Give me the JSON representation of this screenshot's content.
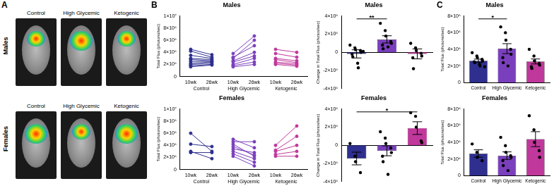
{
  "panel_labels": [
    "A",
    "B",
    "C"
  ],
  "image_panel": {
    "rows": [
      "Males",
      "Females"
    ],
    "columns": [
      "Control",
      "High Glycemic",
      "Ketogenic"
    ]
  },
  "chart_data": [
    {
      "type": "line",
      "title": "Males",
      "y_label": "Total Flux (photons/sec)",
      "categories": [
        "10wk",
        "26wk"
      ],
      "marker": "circle",
      "grid": false,
      "ylim": [
        0,
        10000000.0
      ],
      "yticks": [
        0,
        {
          "value": 2000000.0,
          "label": "2×10⁶"
        },
        {
          "value": 4000000.0,
          "label": "4×10⁶"
        },
        {
          "value": 6000000.0,
          "label": "6×10⁶"
        },
        {
          "value": 8000000.0,
          "label": "8×10⁶"
        },
        {
          "value": 10000000.0,
          "label": "1×10⁷"
        }
      ],
      "groups": [
        {
          "name": "Control",
          "color": "#2e2f8f",
          "subjects": [
            [
              4500000.0,
              3600000.0
            ],
            [
              4200000.0,
              3200000.0
            ],
            [
              3500000.0,
              3000000.0
            ],
            [
              3000000.0,
              2800000.0
            ],
            [
              2800000.0,
              2600000.0
            ],
            [
              2500000.0,
              2500000.0
            ],
            [
              2200000.0,
              2400000.0
            ],
            [
              2000000.0,
              2200000.0
            ],
            [
              1800000.0,
              2000000.0
            ],
            [
              1600000.0,
              1900000.0
            ]
          ]
        },
        {
          "name": "High Glycemic",
          "color": "#7a3fbd",
          "subjects": [
            [
              3800000.0,
              6700000.0
            ],
            [
              3000000.0,
              6000000.0
            ],
            [
              3200000.0,
              5100000.0
            ],
            [
              2600000.0,
              4000000.0
            ],
            [
              2400000.0,
              3400000.0
            ],
            [
              2000000.0,
              3000000.0
            ],
            [
              1800000.0,
              2400000.0
            ],
            [
              1600000.0,
              2000000.0
            ]
          ]
        },
        {
          "name": "Ketogenic",
          "color": "#c0389b",
          "subjects": [
            [
              4500000.0,
              4000000.0
            ],
            [
              3800000.0,
              3200000.0
            ],
            [
              3000000.0,
              2600000.0
            ],
            [
              2800000.0,
              2300000.0
            ],
            [
              2400000.0,
              2100000.0
            ],
            [
              2200000.0,
              1900000.0
            ],
            [
              2000000.0,
              1700000.0
            ]
          ]
        }
      ]
    },
    {
      "type": "line",
      "title": "Females",
      "y_label": "Total Flux (photons/sec)",
      "categories": [
        "10wk",
        "26wk"
      ],
      "marker": "circle",
      "grid": false,
      "ylim": [
        0,
        10000000.0
      ],
      "yticks": [
        0,
        {
          "value": 2000000.0,
          "label": "2×10⁶"
        },
        {
          "value": 4000000.0,
          "label": "4×10⁶"
        },
        {
          "value": 6000000.0,
          "label": "6×10⁶"
        },
        {
          "value": 8000000.0,
          "label": "8×10⁶"
        },
        {
          "value": 10000000.0,
          "label": "1×10⁷"
        }
      ],
      "groups": [
        {
          "name": "Control",
          "color": "#2e2f8f",
          "subjects": [
            [
              6000000.0,
              3000000.0
            ],
            [
              4200000.0,
              3800000.0
            ],
            [
              3000000.0,
              1800000.0
            ],
            [
              2800000.0,
              2800000.0
            ]
          ]
        },
        {
          "name": "High Glycemic",
          "color": "#7a3fbd",
          "subjects": [
            [
              5000000.0,
              3600000.0
            ],
            [
              4600000.0,
              4600000.0
            ],
            [
              4200000.0,
              2200000.0
            ],
            [
              3800000.0,
              2400000.0
            ],
            [
              3400000.0,
              2800000.0
            ],
            [
              3000000.0,
              1800000.0
            ],
            [
              2600000.0,
              1200000.0
            ],
            [
              2200000.0,
              600000.0
            ]
          ]
        },
        {
          "name": "Ketogenic",
          "color": "#c0389b",
          "subjects": [
            [
              4000000.0,
              7200000.0
            ],
            [
              3200000.0,
              5500000.0
            ],
            [
              3000000.0,
              4000000.0
            ],
            [
              2500000.0,
              3000000.0
            ],
            [
              2200000.0,
              2200000.0
            ]
          ]
        }
      ]
    },
    {
      "type": "bar",
      "title": "Males",
      "y_label": "Change in Total Flux (photos/sec)",
      "categories": [
        "Control",
        "High Glycemic",
        "Ketogenic"
      ],
      "colors": [
        "#2e2f8f",
        "#7a3fbd",
        "#c0389b"
      ],
      "tick_labels": "y",
      "grid": false,
      "ylim": [
        -4000000.0,
        4000000.0
      ],
      "yticks": [
        {
          "value": -4000000.0,
          "label": "-4×10⁶"
        },
        {
          "value": -2000000.0,
          "label": "-2×10⁶"
        },
        0,
        {
          "value": 2000000.0,
          "label": "2×10⁶"
        },
        {
          "value": 4000000.0,
          "label": "4×10⁶"
        }
      ],
      "values": [
        -170000.0,
        1430000.0,
        -170000.0
      ],
      "error": [
        450000.0,
        400000.0,
        550000.0
      ],
      "points": [
        [
          800000.0,
          500000.0,
          300000.0,
          200000.0,
          0,
          -200000.0,
          -500000.0,
          -1200000.0,
          -1700000.0,
          100000.0
        ],
        [
          3200000.0,
          2400000.0,
          1800000.0,
          1200000.0,
          1000000.0,
          800000.0,
          400000.0,
          600000.0
        ],
        [
          1000000.0,
          500000.0,
          200000.0,
          -100000.0,
          -400000.0,
          -600000.0,
          -1800000.0
        ]
      ],
      "annotations": [
        {
          "from": 0,
          "to": 1,
          "label": "**"
        }
      ]
    },
    {
      "type": "bar",
      "title": "Females",
      "y_label": "Change in Total Flux (photos/sec)",
      "categories": [
        "Control",
        "High Glycemic",
        "Ketogenic"
      ],
      "colors": [
        "#2e2f8f",
        "#7a3fbd",
        "#c0389b"
      ],
      "tick_labels": "y",
      "grid": false,
      "ylim": [
        -4000000.0,
        4000000.0
      ],
      "yticks": [
        {
          "value": -4000000.0,
          "label": "-4×10⁶"
        },
        {
          "value": -2000000.0,
          "label": "-2×10⁶"
        },
        0,
        {
          "value": 2000000.0,
          "label": "2×10⁶"
        },
        {
          "value": 4000000.0,
          "label": "4×10⁶"
        }
      ],
      "values": [
        -1450000.0,
        -600000.0,
        1900000.0
      ],
      "error": [
        700000.0,
        550000.0,
        700000.0
      ],
      "points": [
        [
          200000.0,
          -1200000.0,
          -1800000.0,
          -3000000.0
        ],
        [
          1500000.0,
          800000.0,
          200000.0,
          -300000.0,
          -800000.0,
          -1200000.0,
          -1800000.0,
          -3200000.0
        ],
        [
          3600000.0,
          3200000.0,
          2000000.0,
          500000.0,
          300000.0
        ]
      ],
      "annotations": [
        {
          "from": 0,
          "to": 2,
          "label": "*"
        }
      ]
    },
    {
      "type": "bar",
      "title": "Males",
      "y_label": "Total Flux (photons/sec)",
      "categories": [
        "Control",
        "High Glycemic",
        "Ketogenic"
      ],
      "colors": [
        "#2e2f8f",
        "#7a3fbd",
        "#c0389b"
      ],
      "grid": false,
      "ylim": [
        0,
        8000000.0
      ],
      "yticks": [
        0,
        {
          "value": 2000000.0,
          "label": "2×10⁶"
        },
        {
          "value": 4000000.0,
          "label": "4×10⁶"
        },
        {
          "value": 6000000.0,
          "label": "6×10⁶"
        },
        {
          "value": 8000000.0,
          "label": "8×10⁶"
        }
      ],
      "values": [
        2620000.0,
        4080000.0,
        2540000.0
      ],
      "error": [
        200000.0,
        600000.0,
        300000.0
      ],
      "points": [
        [
          3600000.0,
          3200000.0,
          3000000.0,
          2800000.0,
          2600000.0,
          2500000.0,
          2400000.0,
          2200000.0,
          2000000.0,
          1900000.0
        ],
        [
          6700000.0,
          6000000.0,
          5100000.0,
          4000000.0,
          3400000.0,
          3000000.0,
          2400000.0,
          2000000.0
        ],
        [
          4000000.0,
          3200000.0,
          2600000.0,
          2300000.0,
          2100000.0,
          1900000.0,
          1700000.0
        ]
      ],
      "annotations": [
        {
          "from": 0,
          "to": 1,
          "label": "*"
        }
      ]
    },
    {
      "type": "bar",
      "title": "Females",
      "y_label": "Total Flux (photons/sec)",
      "categories": [
        "Control",
        "High Glycemic",
        "Ketogenic"
      ],
      "colors": [
        "#2e2f8f",
        "#7a3fbd",
        "#c0389b"
      ],
      "grid": false,
      "ylim": [
        0,
        8000000.0
      ],
      "yticks": [
        0,
        {
          "value": 2000000.0,
          "label": "2×10⁶"
        },
        {
          "value": 4000000.0,
          "label": "4×10⁶"
        },
        {
          "value": 6000000.0,
          "label": "6×10⁶"
        },
        {
          "value": 8000000.0,
          "label": "8×10⁶"
        }
      ],
      "values": [
        2650000.0,
        2400000.0,
        4380000.0
      ],
      "error": [
        450000.0,
        450000.0,
        900000.0
      ],
      "points": [
        [
          3800000.0,
          2800000.0,
          2200000.0,
          1800000.0
        ],
        [
          4600000.0,
          3600000.0,
          2800000.0,
          2400000.0,
          2200000.0,
          1800000.0,
          1200000.0,
          600000.0
        ],
        [
          7200000.0,
          5500000.0,
          4000000.0,
          3000000.0,
          2200000.0
        ]
      ],
      "annotations": []
    }
  ]
}
